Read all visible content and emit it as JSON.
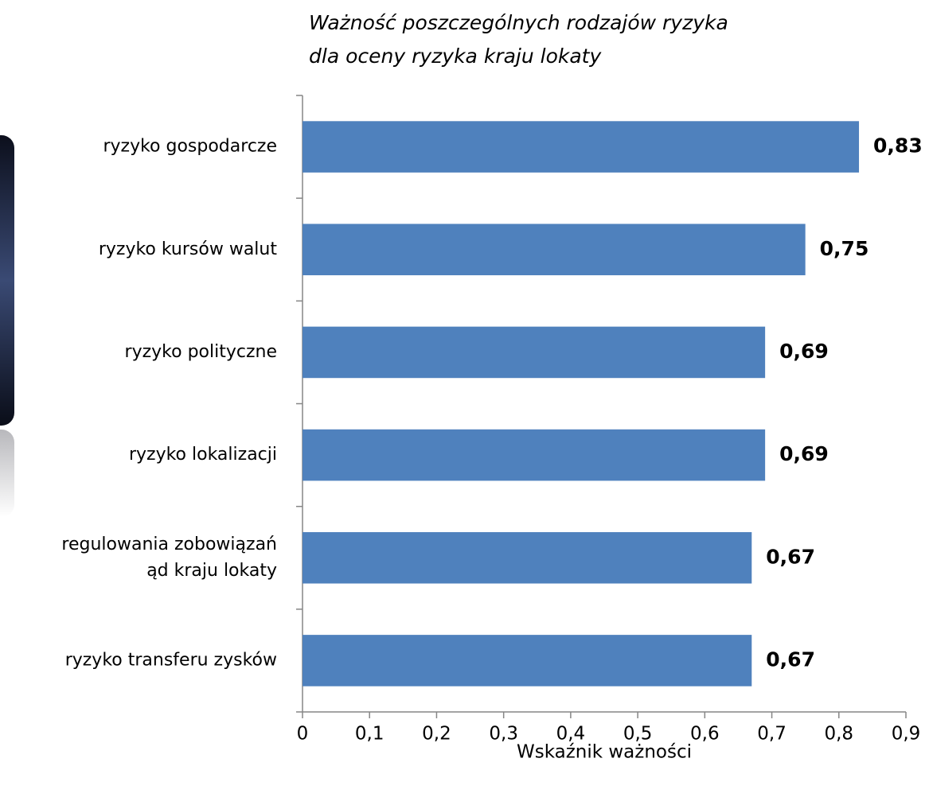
{
  "chart_data": {
    "type": "bar",
    "orientation": "horizontal",
    "title": "Ważność poszczególnych rodzajów ryzyka\ndla oceny ryzyka kraju lokaty",
    "x_label": "Wskaźnik ważności",
    "categories": [
      "ryzyko gospodarcze",
      "ryzyko kursów walut",
      "ryzyko polityczne",
      "ryzyko lokalizacji",
      "regulowania  zobowiązań\nąd kraju lokaty",
      "ryzyko transferu zysków"
    ],
    "values": [
      0.83,
      0.75,
      0.69,
      0.69,
      0.67,
      0.67
    ],
    "value_labels": [
      "0,83",
      "0,75",
      "0,69",
      "0,69",
      "0,67",
      "0,67"
    ],
    "color": "#4f81bd",
    "xlim": [
      0,
      0.9
    ],
    "xticks": [
      0,
      {
        "value": 0.1,
        "label": "0,1"
      },
      {
        "value": 0.2,
        "label": "0,2"
      },
      {
        "value": 0.3,
        "label": "0,3"
      },
      {
        "value": 0.4,
        "label": "0,4"
      },
      {
        "value": 0.5,
        "label": "0,5"
      },
      {
        "value": 0.6,
        "label": "0,6"
      },
      {
        "value": 0.7,
        "label": "0,7"
      },
      {
        "value": 0.8,
        "label": "0,8"
      },
      {
        "value": 0.9,
        "label": "0,9"
      }
    ],
    "grid": false
  }
}
